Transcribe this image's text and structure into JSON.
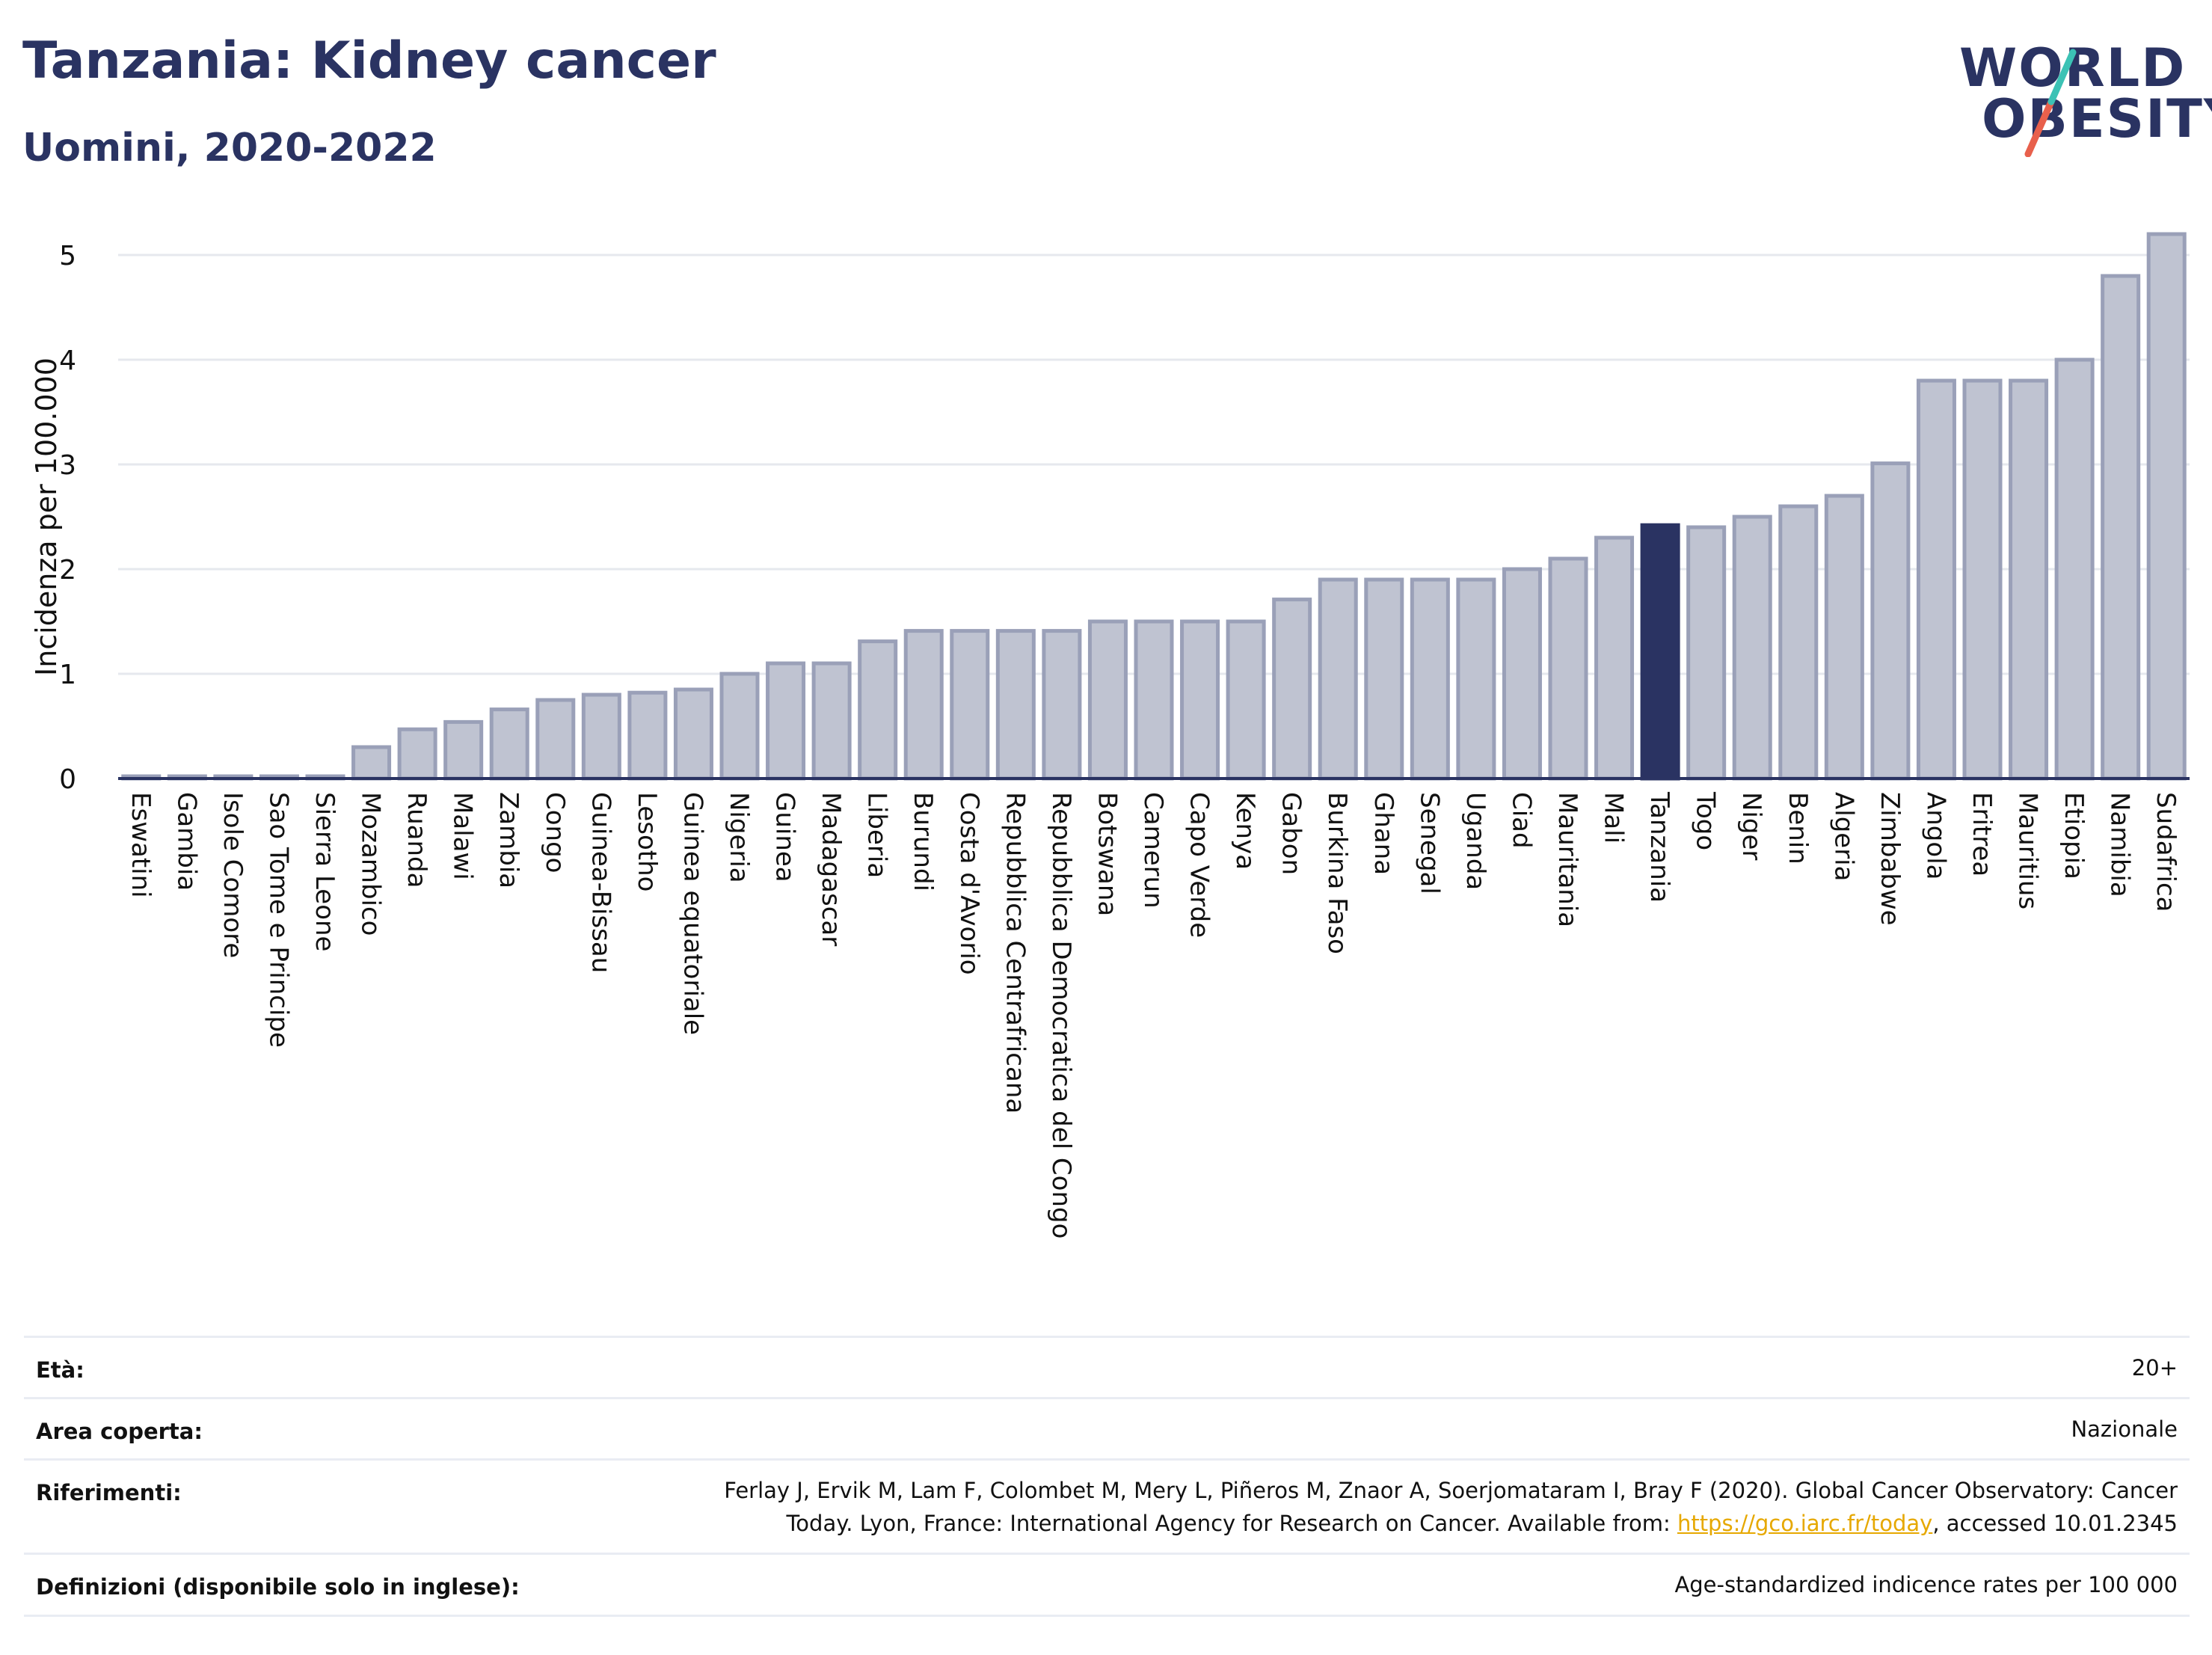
{
  "header": {
    "title": "Tanzania: Kidney cancer",
    "subtitle": "Uomini, 2020-2022"
  },
  "logo": {
    "line1": "WORLD",
    "line2": "OBESITY"
  },
  "colors": {
    "highlight": "#2a3362",
    "bar_fill": "#bfc3d1",
    "bar_stroke": "#9aa0b8",
    "axis": "#2a3362",
    "grid": "#e6e8ee",
    "logo_teal": "#3cc2b5",
    "logo_red": "#e8604c"
  },
  "chart_data": {
    "type": "bar",
    "ylabel": "Incidenza per 100.000",
    "ylim": [
      0,
      5.4
    ],
    "yticks": [
      0,
      1,
      2,
      3,
      4,
      5
    ],
    "highlight": "Tanzania",
    "categories": [
      "Eswatini",
      "Gambia",
      "Isole Comore",
      "Sao Tome e Principe",
      "Sierra Leone",
      "Mozambico",
      "Ruanda",
      "Malawi",
      "Zambia",
      "Congo",
      "Guinea-Bissau",
      "Lesotho",
      "Guinea equatoriale",
      "Nigeria",
      "Guinea",
      "Madagascar",
      "Liberia",
      "Burundi",
      "Costa d'Avorio",
      "Repubblica Centrafricana",
      "Repubblica Democratica del Congo",
      "Botswana",
      "Camerun",
      "Capo Verde",
      "Kenya",
      "Gabon",
      "Burkina Faso",
      "Ghana",
      "Senegal",
      "Uganda",
      "Ciad",
      "Mauritania",
      "Mali",
      "Tanzania",
      "Togo",
      "Niger",
      "Benin",
      "Algeria",
      "Zimbabwe",
      "Angola",
      "Eritrea",
      "Mauritius",
      "Etiopia",
      "Namibia",
      "Sudafrica"
    ],
    "values": [
      0.02,
      0.02,
      0.02,
      0.02,
      0.02,
      0.3,
      0.47,
      0.54,
      0.66,
      0.75,
      0.8,
      0.82,
      0.85,
      1.0,
      1.1,
      1.1,
      1.31,
      1.41,
      1.41,
      1.41,
      1.41,
      1.5,
      1.5,
      1.5,
      1.5,
      1.71,
      1.9,
      1.9,
      1.9,
      1.9,
      2.0,
      2.1,
      2.3,
      2.42,
      2.4,
      2.5,
      2.6,
      2.7,
      3.01,
      3.8,
      3.8,
      3.8,
      4.0,
      4.8,
      5.2
    ],
    "grid": true,
    "legend": "none"
  },
  "info": {
    "age_label": "Età:",
    "age_value": "20+",
    "area_label": "Area coperta:",
    "area_value": "Nazionale",
    "refs_label": "Riferimenti:",
    "refs_line1": "Ferlay J, Ervik M, Lam F, Colombet M, Mery L, Piñeros M, Znaor A, Soerjomataram I, Bray F (2020). Global Cancer Observatory: Cancer",
    "refs_line2_pre": "Today. Lyon, France: International Agency for Research on Cancer. Available from: ",
    "refs_link": "https://gco.iarc.fr/today",
    "refs_line2_post": ", accessed 10.01.2345",
    "defs_label": "Definizioni (disponibile solo in inglese):",
    "defs_value": "Age-standardized indicence rates per 100 000"
  }
}
